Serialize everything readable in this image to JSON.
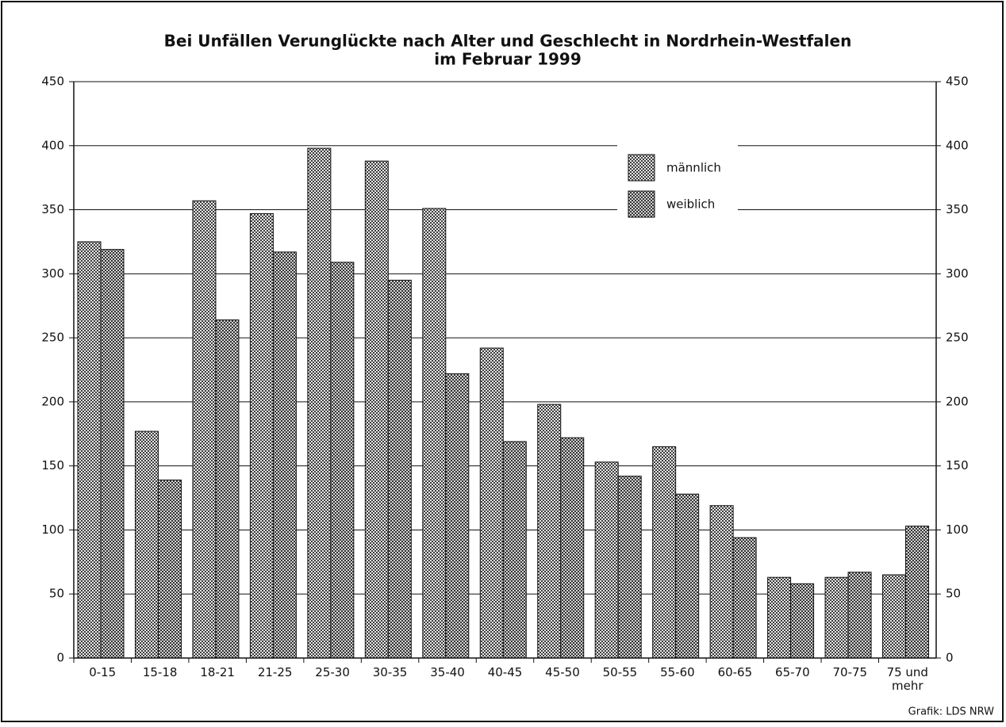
{
  "chart_data": {
    "type": "bar",
    "title": "Bei Unfällen Verunglückte nach Alter und Geschlecht in Nordrhein-Westfalen",
    "subtitle": "im Februar 1999",
    "source": "Grafik: LDS NRW",
    "categories": [
      "0-15",
      "15-18",
      "18-21",
      "21-25",
      "25-30",
      "30-35",
      "35-40",
      "40-45",
      "45-50",
      "50-55",
      "55-60",
      "60-65",
      "65-70",
      "70-75",
      "75 und mehr"
    ],
    "series": [
      {
        "name": "männlich",
        "color": "#3c3c3c",
        "values": [
          325,
          177,
          357,
          347,
          398,
          388,
          351,
          242,
          198,
          153,
          165,
          119,
          63,
          63,
          65
        ]
      },
      {
        "name": "weiblich",
        "color": "#d4d4d4",
        "values": [
          319,
          139,
          264,
          317,
          309,
          295,
          222,
          169,
          172,
          142,
          128,
          94,
          58,
          67,
          103
        ]
      }
    ],
    "ylim": [
      0,
      450
    ],
    "yticks": [
      0,
      50,
      100,
      150,
      200,
      250,
      300,
      350,
      400,
      450
    ],
    "y2lim": [
      0,
      450
    ],
    "y2ticks": [
      0,
      50,
      100,
      150,
      200,
      250,
      300,
      350,
      400,
      450
    ],
    "grid": true,
    "legend": "top-right"
  }
}
